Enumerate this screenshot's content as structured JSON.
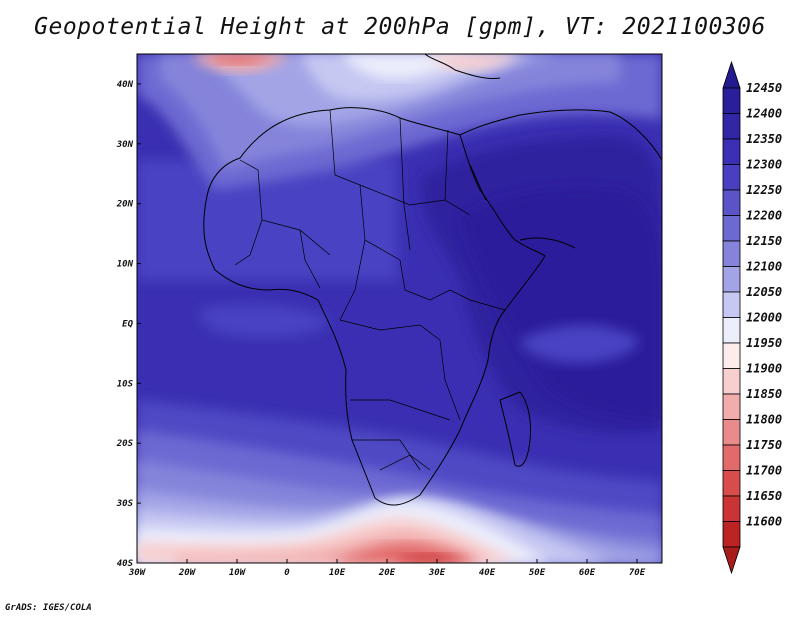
{
  "title": "Geopotential Height at 200hPa [gpm], VT: 2021100306",
  "credit": "GrADS: IGES/COLA",
  "map": {
    "lon_range": [
      -30,
      75
    ],
    "lat_range": [
      -40,
      45
    ],
    "lon_ticks": [
      {
        "value": -30,
        "label": "30W"
      },
      {
        "value": -20,
        "label": "20W"
      },
      {
        "value": -10,
        "label": "10W"
      },
      {
        "value": 0,
        "label": "0"
      },
      {
        "value": 10,
        "label": "10E"
      },
      {
        "value": 20,
        "label": "20E"
      },
      {
        "value": 30,
        "label": "30E"
      },
      {
        "value": 40,
        "label": "40E"
      },
      {
        "value": 50,
        "label": "50E"
      },
      {
        "value": 60,
        "label": "60E"
      },
      {
        "value": 70,
        "label": "70E"
      }
    ],
    "lat_ticks": [
      {
        "value": 40,
        "label": "40N"
      },
      {
        "value": 30,
        "label": "30N"
      },
      {
        "value": 20,
        "label": "20N"
      },
      {
        "value": 10,
        "label": "10N"
      },
      {
        "value": 0,
        "label": "EQ"
      },
      {
        "value": -10,
        "label": "10S"
      },
      {
        "value": -20,
        "label": "20S"
      },
      {
        "value": -30,
        "label": "30S"
      },
      {
        "value": -40,
        "label": "40S"
      }
    ]
  },
  "colorbar": {
    "levels": [
      {
        "value": "12450",
        "color": "#2a1f9a"
      },
      {
        "value": "12400",
        "color": "#3326a6"
      },
      {
        "value": "12350",
        "color": "#3b30b4"
      },
      {
        "value": "12300",
        "color": "#4840c0"
      },
      {
        "value": "12250",
        "color": "#5a54c8"
      },
      {
        "value": "12200",
        "color": "#6d69d2"
      },
      {
        "value": "12150",
        "color": "#8584da"
      },
      {
        "value": "12100",
        "color": "#a3a4e6"
      },
      {
        "value": "12050",
        "color": "#c6c8f2"
      },
      {
        "value": "12000",
        "color": "#eceefc"
      },
      {
        "value": "11950",
        "color": "#fcecec"
      },
      {
        "value": "11900",
        "color": "#f8cfcf"
      },
      {
        "value": "11850",
        "color": "#f1acac"
      },
      {
        "value": "11800",
        "color": "#ea8b8b"
      },
      {
        "value": "11750",
        "color": "#e26a6a"
      },
      {
        "value": "11700",
        "color": "#d84c4c"
      },
      {
        "value": "11650",
        "color": "#cb3434"
      },
      {
        "value": "11600",
        "color": "#bc2424"
      }
    ],
    "above_color": "#231a8f",
    "below_color": "#a81c1c"
  }
}
